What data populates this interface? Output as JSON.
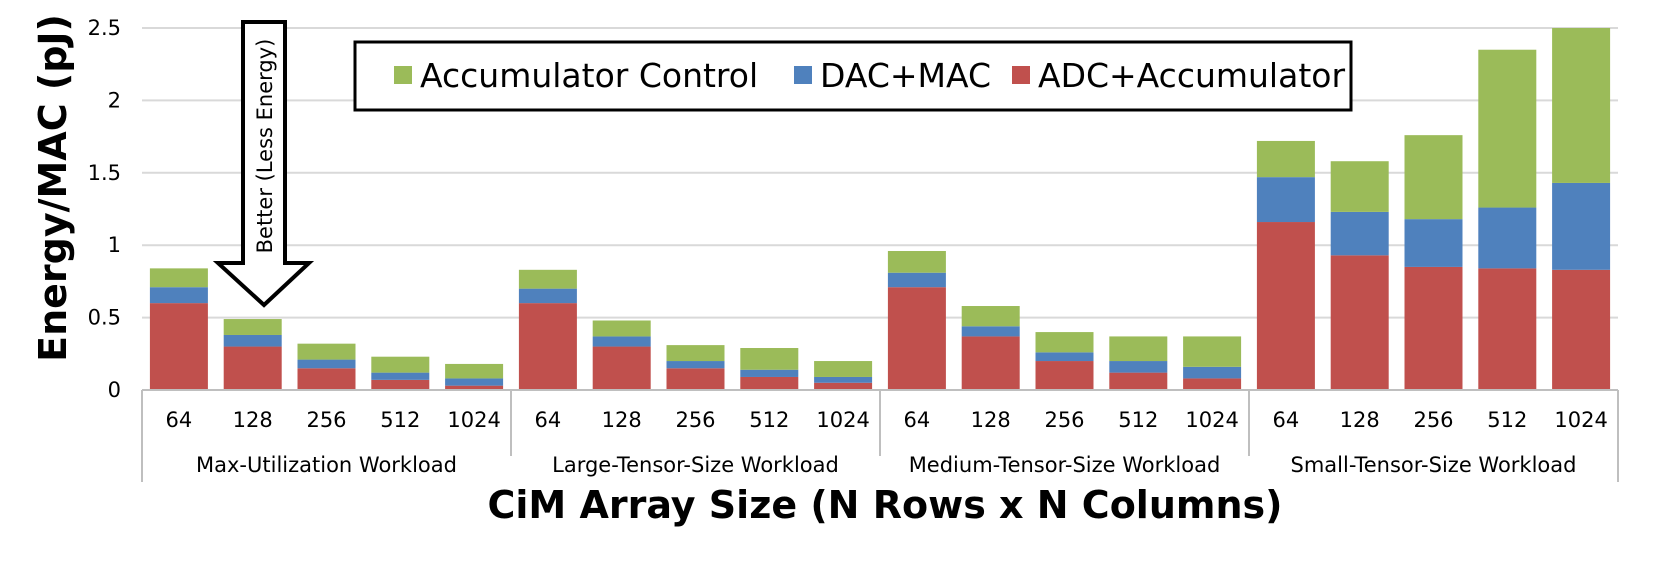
{
  "chart_data": {
    "type": "bar",
    "stacked": true,
    "xlabel": "CiM Array Size (N Rows x N Columns)",
    "ylabel": "Energy/MAC (pJ)",
    "ylim": [
      0,
      2.5
    ],
    "yticks": [
      "0",
      "0.5",
      "1",
      "1.5",
      "2",
      "2.5"
    ],
    "groups": [
      {
        "name": "Max-Utilization Workload",
        "categories": [
          "64",
          "128",
          "256",
          "512",
          "1024"
        ]
      },
      {
        "name": "Large-Tensor-Size Workload",
        "categories": [
          "64",
          "128",
          "256",
          "512",
          "1024"
        ]
      },
      {
        "name": "Medium-Tensor-Size Workload",
        "categories": [
          "64",
          "128",
          "256",
          "512",
          "1024"
        ]
      },
      {
        "name": "Small-Tensor-Size Workload",
        "categories": [
          "64",
          "128",
          "256",
          "512",
          "1024"
        ]
      }
    ],
    "series": [
      {
        "name": "ADC+Accumulator",
        "color": "#C0504D",
        "values": [
          0.6,
          0.3,
          0.15,
          0.07,
          0.03,
          0.6,
          0.3,
          0.15,
          0.09,
          0.05,
          0.71,
          0.37,
          0.2,
          0.12,
          0.08,
          1.16,
          0.93,
          0.85,
          0.84,
          0.83
        ]
      },
      {
        "name": "DAC+MAC",
        "color": "#4F81BD",
        "values": [
          0.11,
          0.08,
          0.06,
          0.05,
          0.05,
          0.1,
          0.07,
          0.05,
          0.05,
          0.04,
          0.1,
          0.07,
          0.06,
          0.08,
          0.08,
          0.31,
          0.3,
          0.33,
          0.42,
          0.6
        ]
      },
      {
        "name": "Accumulator Control",
        "color": "#9BBB59",
        "values": [
          0.13,
          0.11,
          0.11,
          0.11,
          0.1,
          0.13,
          0.11,
          0.11,
          0.15,
          0.11,
          0.15,
          0.14,
          0.14,
          0.17,
          0.21,
          0.25,
          0.35,
          0.58,
          1.09,
          1.07
        ]
      }
    ],
    "legend": {
      "position": "top-center",
      "order": [
        "Accumulator Control",
        "DAC+MAC",
        "ADC+Accumulator"
      ]
    },
    "annotation": {
      "text": "Better (Less Energy)",
      "direction": "down"
    },
    "grid": true
  }
}
